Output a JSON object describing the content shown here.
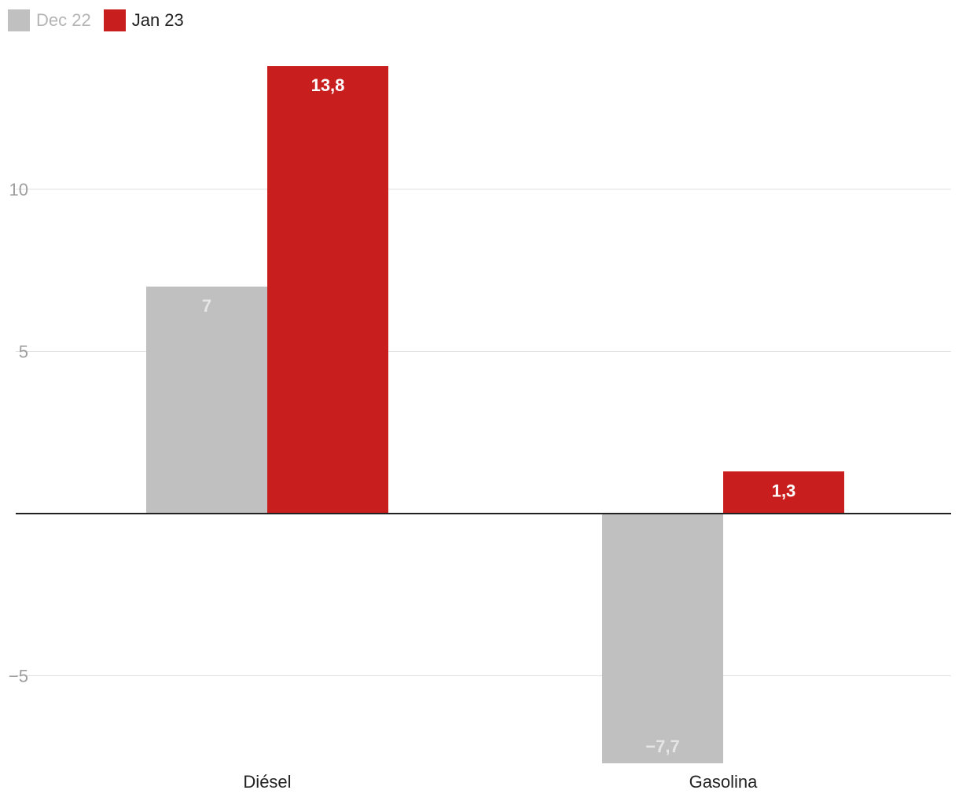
{
  "chart_data": {
    "type": "bar",
    "categories": [
      "Diésel",
      "Gasolina"
    ],
    "series": [
      {
        "name": "Dec 22",
        "values": [
          7,
          -7.7
        ],
        "value_labels": [
          "7",
          "−7,7"
        ],
        "color": "#c0c0c0",
        "label_color": "#e6e6e6",
        "legend_text_color": "#b5b5b5"
      },
      {
        "name": "Jan 23",
        "values": [
          13.8,
          1.3
        ],
        "value_labels": [
          "13,8",
          "1,3"
        ],
        "color": "#c81e1e",
        "label_color": "#ffffff",
        "legend_text_color": "#222222"
      }
    ],
    "y_ticks": [
      -5,
      5,
      10
    ],
    "y_tick_labels": [
      "−5",
      "5",
      "10"
    ],
    "ylim": [
      -7.7,
      13.8
    ],
    "grid": true,
    "legend": "top-left",
    "colors": {
      "grid": "#e0e0e0",
      "zero_line": "#222222",
      "tick_text": "#9e9e9e",
      "category_text": "#222222"
    }
  }
}
